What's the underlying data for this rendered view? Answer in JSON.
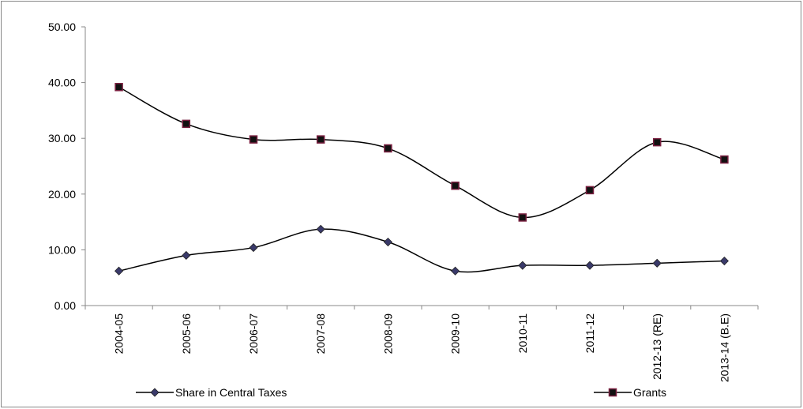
{
  "chart_data": {
    "type": "line",
    "categories": [
      "2004-05",
      "2005-06",
      "2006-07",
      "2007-08",
      "2008-09",
      "2009-10",
      "2010-11",
      "2011-12",
      "2012-13 (RE)",
      "2013-14 (B.E)"
    ],
    "series": [
      {
        "name": "Share in Central Taxes",
        "color": "#000000",
        "marker": "diamond",
        "marker_color": "#3a3a6a",
        "values": [
          6.2,
          9.0,
          10.4,
          13.7,
          11.4,
          6.2,
          7.2,
          7.2,
          7.6,
          8.0
        ]
      },
      {
        "name": "Grants",
        "color": "#000000",
        "marker": "square",
        "marker_color": "#7a2040",
        "values": [
          39.2,
          32.6,
          29.8,
          29.8,
          28.2,
          21.5,
          15.8,
          20.7,
          29.3,
          26.2
        ]
      }
    ],
    "ylim": [
      0,
      50
    ],
    "yticks": [
      {
        "value": 0,
        "label": "0.00"
      },
      {
        "value": 10,
        "label": "10.00"
      },
      {
        "value": 20,
        "label": "20.00"
      },
      {
        "value": 30,
        "label": "30.00"
      },
      {
        "value": 40,
        "label": "40.00"
      },
      {
        "value": 50,
        "label": "50.00"
      }
    ],
    "grid": false,
    "smooth": true,
    "legend": "bottom"
  }
}
